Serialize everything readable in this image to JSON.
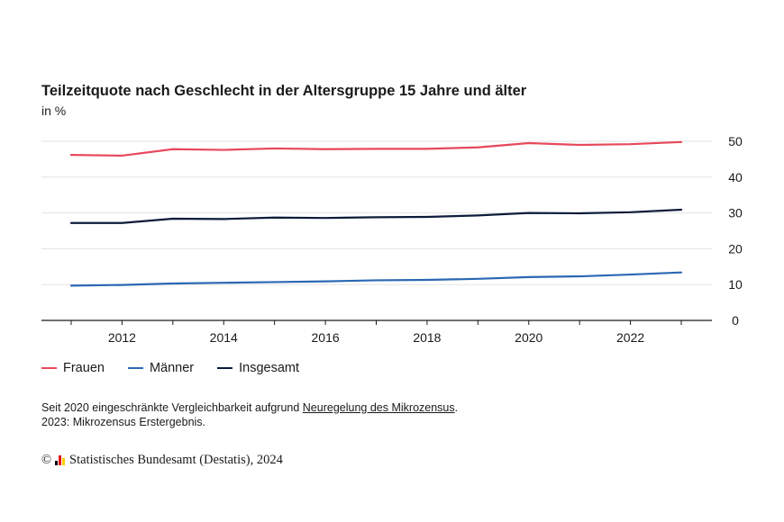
{
  "title": "Teilzeitquote nach Geschlecht in der Altersgruppe 15 Jahre und älter",
  "subtitle": "in %",
  "colors": {
    "frauen": "#e8485c",
    "maenner": "#2a68b4",
    "insgesamt": "#0d1b3a",
    "grid": "#e3e3e3",
    "axis": "#1a1a1a"
  },
  "chart_data": {
    "type": "line",
    "x": [
      2011,
      2012,
      2013,
      2014,
      2015,
      2016,
      2017,
      2018,
      2019,
      2020,
      2021,
      2022,
      2023
    ],
    "xticks": [
      2012,
      2014,
      2016,
      2018,
      2020,
      2022
    ],
    "yticks": [
      0,
      10,
      20,
      30,
      40,
      50
    ],
    "ylim": [
      0,
      50
    ],
    "grid": true,
    "legend_position": "bottom-left",
    "series": [
      {
        "name": "Frauen",
        "color": "#e8485c",
        "values": [
          46.2,
          46.0,
          47.8,
          47.6,
          48.0,
          47.8,
          47.9,
          47.9,
          48.3,
          49.5,
          49.0,
          49.2,
          49.8
        ]
      },
      {
        "name": "Männer",
        "color": "#2a68b4",
        "values": [
          9.7,
          9.9,
          10.3,
          10.5,
          10.7,
          10.9,
          11.2,
          11.3,
          11.6,
          12.1,
          12.3,
          12.8,
          13.4
        ]
      },
      {
        "name": "Insgesamt",
        "color": "#0d1b3a",
        "values": [
          27.2,
          27.2,
          28.4,
          28.3,
          28.7,
          28.6,
          28.8,
          28.9,
          29.3,
          30.0,
          29.9,
          30.2,
          30.9
        ]
      }
    ]
  },
  "legend": {
    "frauen": "Frauen",
    "maenner": "Männer",
    "insgesamt": "Insgesamt"
  },
  "notes": {
    "line1_prefix": "Seit 2020 eingeschränkte Vergleichbarkeit aufgrund ",
    "line1_link": "Neuregelung des Mikrozensus",
    "line1_suffix": ".",
    "line2": "2023: Mikrozensus Erstergebnis."
  },
  "footer": {
    "copyright": "©",
    "source": "Statistisches Bundesamt (Destatis), 2024"
  }
}
